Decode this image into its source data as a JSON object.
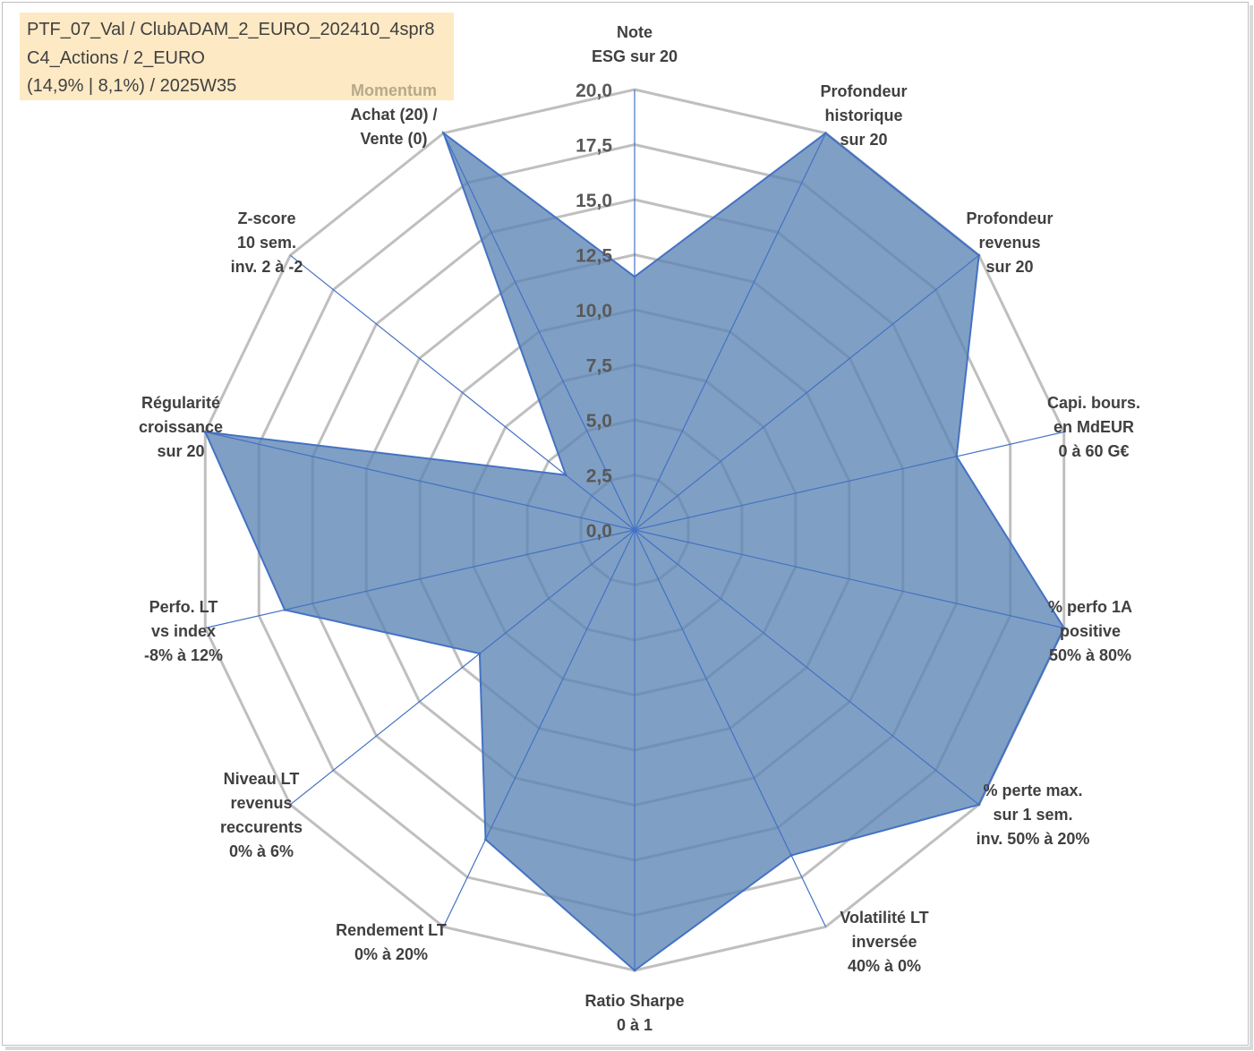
{
  "header": {
    "lines": [
      "PTF_07_Val / ClubADAM_2_EURO_202410_4spr8",
      "C4_Actions / 2_EURO",
      "(14,9% | 8,1%) / 2025W35"
    ]
  },
  "chart_data": {
    "type": "radar",
    "rmin": 0,
    "rmax": 20,
    "ticks": [
      "0,0",
      "2,5",
      "5,0",
      "7,5",
      "10,0",
      "12,5",
      "15,0",
      "17,5",
      "20,0"
    ],
    "grid": true,
    "fill_color": "#5b84b4",
    "line_color": "#4472c4",
    "grid_color": "#bfbfbf",
    "axes": [
      {
        "lines": [
          "Note",
          "ESG sur 20"
        ],
        "value": 11.5
      },
      {
        "lines": [
          "Profondeur",
          "historique",
          "sur 20"
        ],
        "value": 20
      },
      {
        "lines": [
          "Profondeur",
          "revenus",
          "sur 20"
        ],
        "value": 20
      },
      {
        "lines": [
          "Capi. bours.",
          "en MdEUR",
          "0 à 60 G€"
        ],
        "value": 15
      },
      {
        "lines": [
          "% perfo 1A",
          "positive",
          "50% à 80%"
        ],
        "value": 20
      },
      {
        "lines": [
          "% perte max.",
          "sur 1 sem.",
          "inv. 50% à 20%"
        ],
        "value": 20
      },
      {
        "lines": [
          "Volatilité LT",
          "inversée",
          "40% à 0%"
        ],
        "value": 16.4
      },
      {
        "lines": [
          "Ratio Sharpe",
          "0 à 1"
        ],
        "value": 20
      },
      {
        "lines": [
          "Rendement LT",
          "0% à 20%"
        ],
        "value": 15.6
      },
      {
        "lines": [
          "Niveau LT",
          "revenus",
          "reccurents",
          "0% à 6%"
        ],
        "value": 9.0
      },
      {
        "lines": [
          "Perfo. LT",
          "vs index",
          "-8% à 12%"
        ],
        "value": 16.3
      },
      {
        "lines": [
          "Régularité",
          "croissance",
          "sur 20"
        ],
        "value": 20
      },
      {
        "lines": [
          "Z-score",
          "10 sem.",
          "inv. 2 à -2"
        ],
        "value": 4.0
      },
      {
        "lines": [
          "Momentum",
          "Achat (20) /",
          "Vente (0)"
        ],
        "value": 20
      }
    ]
  }
}
